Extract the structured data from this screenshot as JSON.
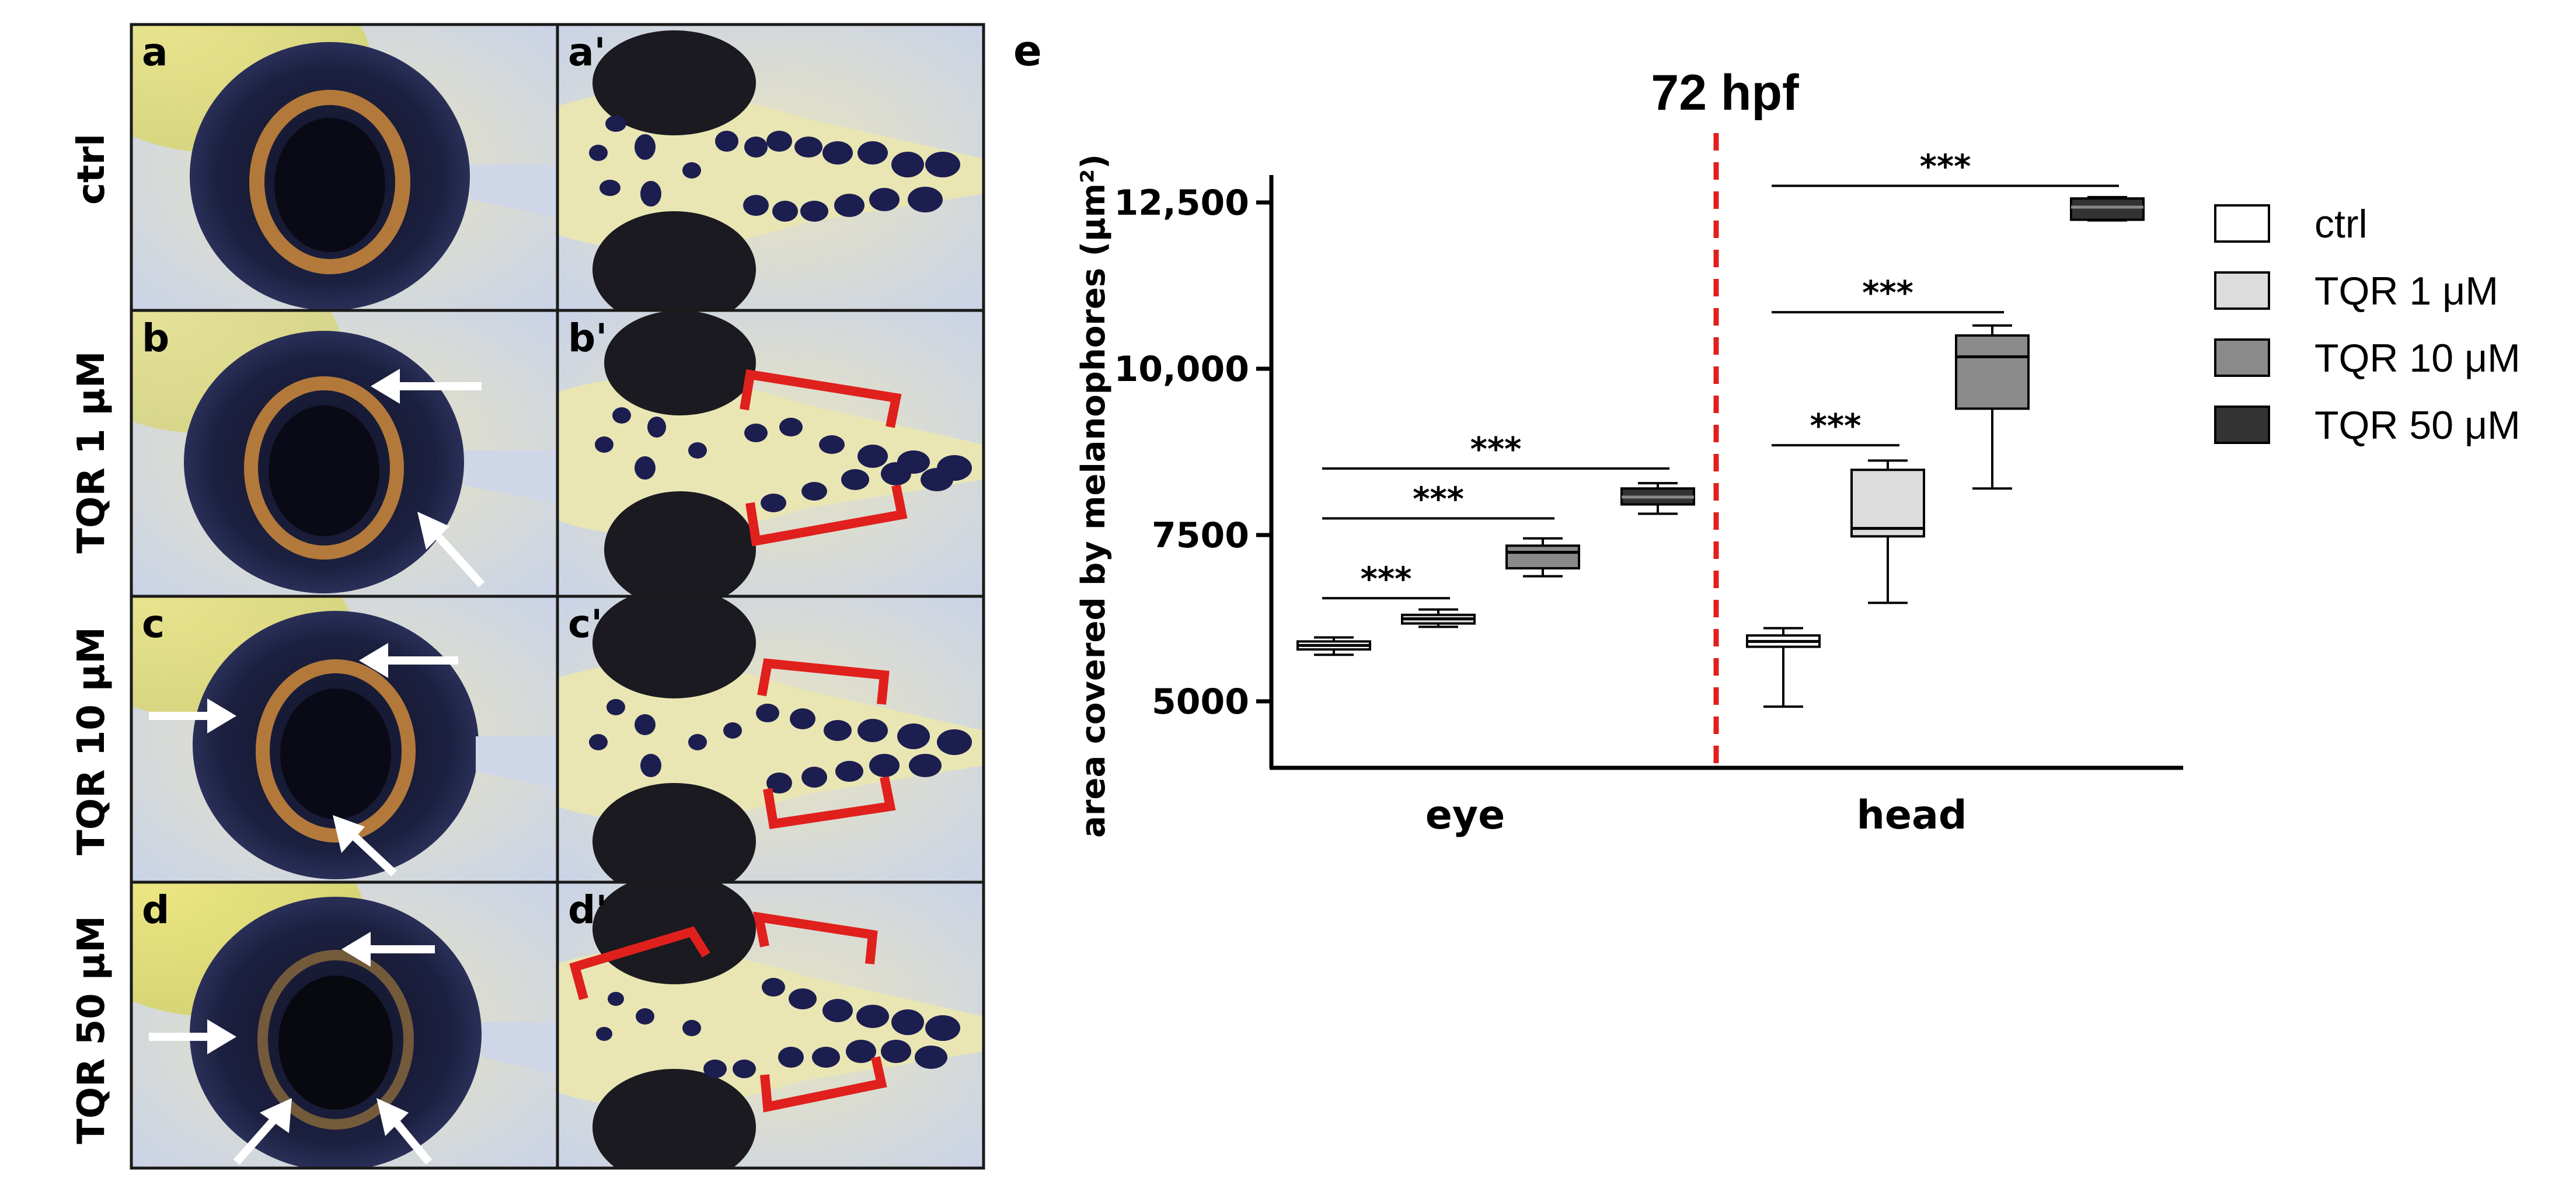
{
  "panels": {
    "letters": [
      "a",
      "a'",
      "b",
      "b'",
      "c",
      "c'",
      "d",
      "d'"
    ],
    "rows": [
      "ctrl",
      "TQR 1 μM",
      "TQR 10 μM",
      "TQR 50 μM"
    ]
  },
  "chart_letter": "e",
  "colors": {
    "panel_border": "#1a1a1a",
    "tissue": "#e8e4b4",
    "background_blue": "#c9d4ec",
    "yolk": "#e4dc5a",
    "pigment": "#141630",
    "iris": "#c4843c",
    "arrow": "#ffffff",
    "bracket": "#e0201c",
    "divider": "#e0201c",
    "ctrl_fill": "#ffffff",
    "tqr1_fill": "#dcdcdc",
    "tqr10_fill": "#8a8a8a",
    "tqr50_fill": "#333333"
  },
  "chart_data": {
    "type": "box",
    "title": "72 hpf",
    "xlabel": "",
    "ylabel": "area covered by melanophores (μm²)",
    "ylim": [
      4000,
      13000
    ],
    "yticks": [
      5000,
      7500,
      10000,
      12500
    ],
    "ytick_labels": [
      "5000",
      "7500",
      "10,000",
      "12,500"
    ],
    "categories": [
      "eye",
      "head"
    ],
    "series": [
      {
        "name": "ctrl",
        "boxes": [
          {
            "category": "eye",
            "min": 5700,
            "q1": 5780,
            "median": 5840,
            "q3": 5900,
            "max": 5960
          },
          {
            "category": "head",
            "min": 4920,
            "q1": 5820,
            "median": 5900,
            "q3": 5990,
            "max": 6100
          }
        ]
      },
      {
        "name": "TQR 1 μM",
        "boxes": [
          {
            "category": "eye",
            "min": 6120,
            "q1": 6170,
            "median": 6240,
            "q3": 6300,
            "max": 6380
          },
          {
            "category": "head",
            "min": 6480,
            "q1": 7480,
            "median": 7600,
            "q3": 8480,
            "max": 8620
          }
        ]
      },
      {
        "name": "TQR 10 μM",
        "boxes": [
          {
            "category": "eye",
            "min": 6880,
            "q1": 7000,
            "median": 7240,
            "q3": 7340,
            "max": 7450
          },
          {
            "category": "head",
            "min": 8200,
            "q1": 9400,
            "median": 10180,
            "q3": 10500,
            "max": 10650
          }
        ]
      },
      {
        "name": "TQR 50 μM",
        "boxes": [
          {
            "category": "eye",
            "min": 7820,
            "q1": 7960,
            "median": 8070,
            "q3": 8200,
            "max": 8280
          },
          {
            "category": "head",
            "min": 12230,
            "q1": 12240,
            "median": 12430,
            "q3": 12560,
            "max": 12580
          }
        ]
      }
    ],
    "significance": [
      {
        "category": "eye",
        "from": "ctrl",
        "to": "TQR 1 μM",
        "label": "***",
        "y": 6550
      },
      {
        "category": "eye",
        "from": "ctrl",
        "to": "TQR 10 μM",
        "label": "***",
        "y": 7750
      },
      {
        "category": "eye",
        "from": "ctrl",
        "to": "TQR 50 μM",
        "label": "***",
        "y": 8500
      },
      {
        "category": "head",
        "from": "ctrl",
        "to": "TQR 1 μM",
        "label": "***",
        "y": 8850
      },
      {
        "category": "head",
        "from": "ctrl",
        "to": "TQR 10 μM",
        "label": "***",
        "y": 10850
      },
      {
        "category": "head",
        "from": "ctrl",
        "to": "TQR 50 μM",
        "label": "***",
        "y": 12750
      }
    ],
    "legend": {
      "position": "right",
      "entries": [
        "ctrl",
        "TQR 1 μM",
        "TQR 10 μM",
        "TQR 50 μM"
      ]
    },
    "grid": false,
    "divider": "dashed red line between eye and head"
  }
}
